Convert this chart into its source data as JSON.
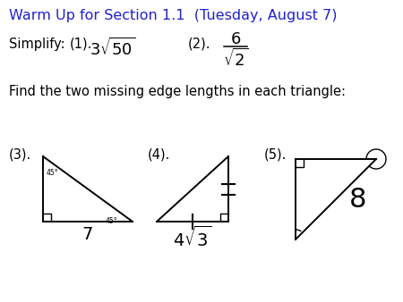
{
  "title": "Warm Up for Section 1.1  (Tuesday, August 7)",
  "title_color": "#2222CC",
  "title_fontsize": 11.5,
  "find_label": "Find the two missing edge lengths in each triangle:",
  "label_fontsize": 10.5,
  "small_fontsize": 5.5,
  "num_fontsize": 12
}
